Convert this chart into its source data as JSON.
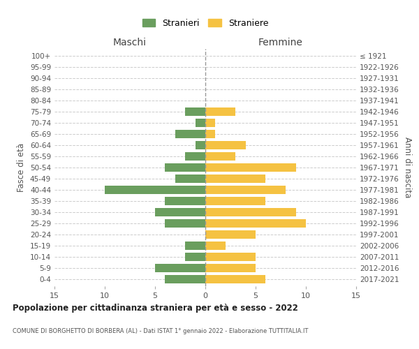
{
  "age_groups": [
    "0-4",
    "5-9",
    "10-14",
    "15-19",
    "20-24",
    "25-29",
    "30-34",
    "35-39",
    "40-44",
    "45-49",
    "50-54",
    "55-59",
    "60-64",
    "65-69",
    "70-74",
    "75-79",
    "80-84",
    "85-89",
    "90-94",
    "95-99",
    "100+"
  ],
  "birth_years": [
    "2017-2021",
    "2012-2016",
    "2007-2011",
    "2002-2006",
    "1997-2001",
    "1992-1996",
    "1987-1991",
    "1982-1986",
    "1977-1981",
    "1972-1976",
    "1967-1971",
    "1962-1966",
    "1957-1961",
    "1952-1956",
    "1947-1951",
    "1942-1946",
    "1937-1941",
    "1932-1936",
    "1927-1931",
    "1922-1926",
    "≤ 1921"
  ],
  "maschi": [
    4,
    5,
    2,
    2,
    0,
    4,
    5,
    4,
    10,
    3,
    4,
    2,
    1,
    3,
    1,
    2,
    0,
    0,
    0,
    0,
    0
  ],
  "femmine": [
    6,
    5,
    5,
    2,
    5,
    10,
    9,
    6,
    8,
    6,
    9,
    3,
    4,
    1,
    1,
    3,
    0,
    0,
    0,
    0,
    0
  ],
  "color_maschi": "#6a9e5e",
  "color_femmine": "#f5c242",
  "title": "Popolazione per cittadinanza straniera per età e sesso - 2022",
  "subtitle": "COMUNE DI BORGHETTO DI BORBERA (AL) - Dati ISTAT 1° gennaio 2022 - Elaborazione TUTTITALIA.IT",
  "ylabel_left": "Fasce di età",
  "ylabel_right": "Anni di nascita",
  "xlabel_maschi": "Maschi",
  "xlabel_femmine": "Femmine",
  "legend_maschi": "Stranieri",
  "legend_femmine": "Straniere",
  "xlim": 15,
  "background_color": "#ffffff",
  "grid_color": "#cccccc"
}
